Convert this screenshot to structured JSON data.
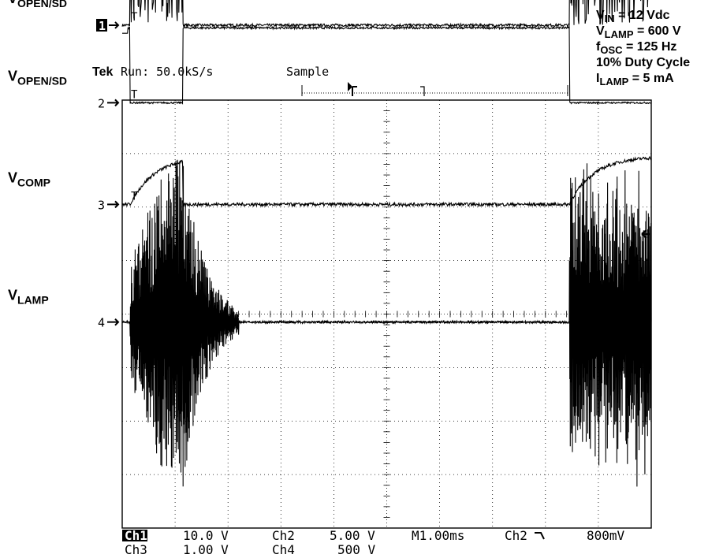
{
  "chart_data": {
    "type": "line",
    "title": "",
    "instrument": {
      "brand": "Tek",
      "status": "Run: 50.0kS/s",
      "mode": "Sample"
    },
    "conditions": [
      {
        "main": "V",
        "sub": "IN",
        "rest": " = 12 Vdc"
      },
      {
        "main": "V",
        "sub": "LAMP",
        "rest": " = 600 V"
      },
      {
        "main": "f",
        "sub": "OSC",
        "rest": " = 125 Hz"
      },
      {
        "main": "",
        "sub": "",
        "rest": "10% Duty Cycle"
      },
      {
        "main": "I",
        "sub": "LAMP",
        "rest": " = 5 mA"
      }
    ],
    "x_divisions": 10,
    "y_divisions": 8,
    "time_per_div_ms": 1.0,
    "grid": true,
    "series": [
      {
        "name_main": "V",
        "name_sub": "OPEN/SD",
        "marker": "1",
        "scale": "10.0 V",
        "ground_div": 5.4,
        "type": "burst-square",
        "on_ms": [
          [
            0.15,
            1.15
          ],
          [
            8.45,
            10.0
          ]
        ],
        "high_div": 1.85
      },
      {
        "name_main": "V",
        "name_sub": "OPEN/SD",
        "marker": "2",
        "scale": "5.00 V",
        "ground_div": 3.95,
        "type": "square",
        "low_ms": [
          [
            0.15,
            1.15
          ],
          [
            8.45,
            10.0
          ]
        ],
        "high_div": 1.4,
        "low_div": 0.0
      },
      {
        "name_main": "V",
        "name_sub": "COMP",
        "marker": "3",
        "scale": "1.00 V",
        "ground_div": 2.05,
        "type": "ramp",
        "ramp_ms": [
          [
            0.15,
            1.15
          ],
          [
            8.45,
            10.0
          ]
        ],
        "peak_div": 0.8
      },
      {
        "name_main": "V",
        "name_sub": "LAMP",
        "marker": "4",
        "scale": "500 V",
        "ground_div": -0.15,
        "type": "burst-ac",
        "burst_ms": [
          [
            0.15,
            2.2
          ],
          [
            8.45,
            10.0
          ]
        ],
        "peak_div": 3.1
      }
    ],
    "readout": {
      "row1": [
        "Ch1",
        "10.0 V",
        "Ch2",
        "5.00 V",
        "M1.00ms",
        "Ch2",
        "800mV"
      ],
      "row2": [
        "Ch3",
        "1.00 V",
        "Ch4",
        "500 V"
      ]
    }
  }
}
